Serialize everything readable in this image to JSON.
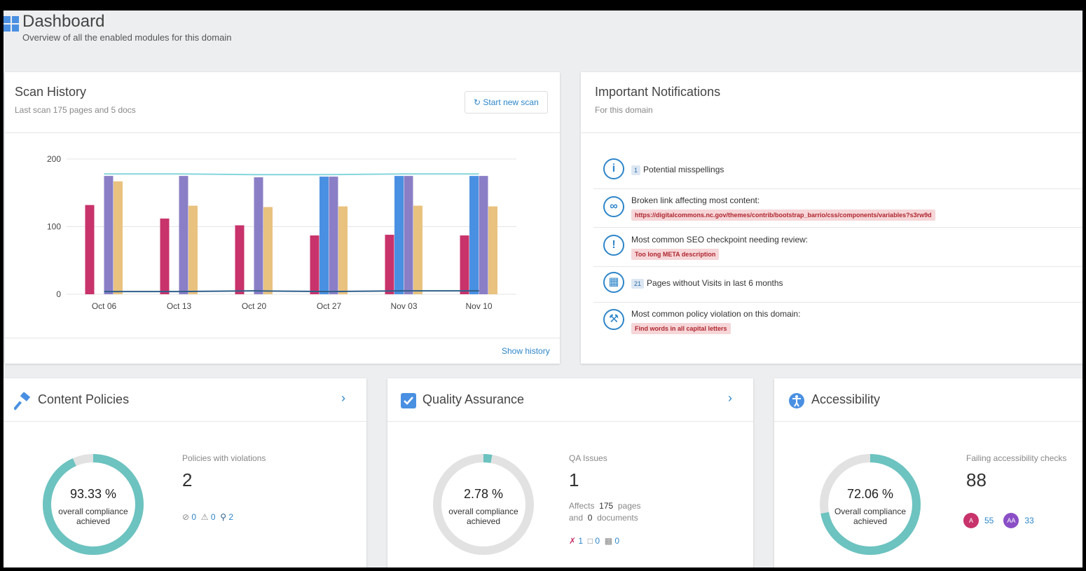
{
  "header": {
    "title": "Dashboard",
    "subtitle": "Overview of all the enabled modules for this domain"
  },
  "scan_history": {
    "title": "Scan History",
    "subtitle": "Last scan 175 pages and 5 docs",
    "button": "Start new scan",
    "link": "Show history",
    "chart": {
      "type": "bar",
      "categories": [
        "Oct 06",
        "Oct 13",
        "Oct 20",
        "Oct 27",
        "Nov 03",
        "Nov 10"
      ],
      "ylim": [
        0,
        200
      ],
      "yticks": [
        0,
        100,
        200
      ],
      "grid": true,
      "series": [
        {
          "color": "#c8336b",
          "values": [
            132,
            112,
            102,
            87,
            88,
            87
          ]
        },
        {
          "color": "#4a90e2",
          "values": [
            null,
            null,
            null,
            174,
            175,
            175
          ]
        },
        {
          "color": "#8a7fc6",
          "values": [
            175,
            175,
            173,
            174,
            175,
            175
          ]
        },
        {
          "color": "#e9c27f",
          "values": [
            167,
            131,
            129,
            130,
            131,
            130
          ]
        },
        {
          "type": "line",
          "color": "#86d6dc",
          "values": [
            178,
            178,
            177,
            177,
            178,
            178
          ]
        },
        {
          "type": "line",
          "color": "#2f5f8a",
          "values": [
            4,
            4,
            5,
            4,
            5,
            5
          ]
        }
      ]
    }
  },
  "notifications": {
    "title": "Important Notifications",
    "subtitle": "For this domain",
    "items": [
      {
        "badge": "1",
        "text": "Potential misspellings"
      },
      {
        "text": "Broken link affecting most content:",
        "tag": "https://digitalcommons.nc.gov/themes/contrib/bootstrap_barrio/css/components/variables?s3rw9d"
      },
      {
        "text": "Most common SEO checkpoint needing review:",
        "tag": "Too long META description"
      },
      {
        "badge": "21",
        "text": "Pages without Visits in last 6 months"
      },
      {
        "text": "Most common policy violation on this domain:",
        "tag": "Find words in all capital letters"
      }
    ]
  },
  "modules": [
    {
      "title": "Content Policies",
      "compliance": 93.33,
      "compliance_label": "93.33 %",
      "caption": "overall compliance achieved",
      "stat_label": "Policies with violations",
      "stat": "2",
      "counts": [
        0,
        0,
        2
      ]
    },
    {
      "title": "Quality Assurance",
      "compliance": 2.78,
      "compliance_label": "2.78 %",
      "caption": "overall compliance achieved",
      "stat_label": "QA Issues",
      "stat": "1",
      "affects": [
        "Affects",
        "175",
        "pages",
        "and",
        "0",
        "documents"
      ],
      "counts": [
        1,
        0,
        0
      ]
    },
    {
      "title": "Accessibility",
      "compliance": 72.06,
      "compliance_label": "72.06 %",
      "caption": "Overall compliance achieved",
      "stat_label": "Failing accessibility checks",
      "stat": "88",
      "levels": [
        {
          "name": "A",
          "count": 55
        },
        {
          "name": "AA",
          "count": 33
        }
      ]
    }
  ]
}
